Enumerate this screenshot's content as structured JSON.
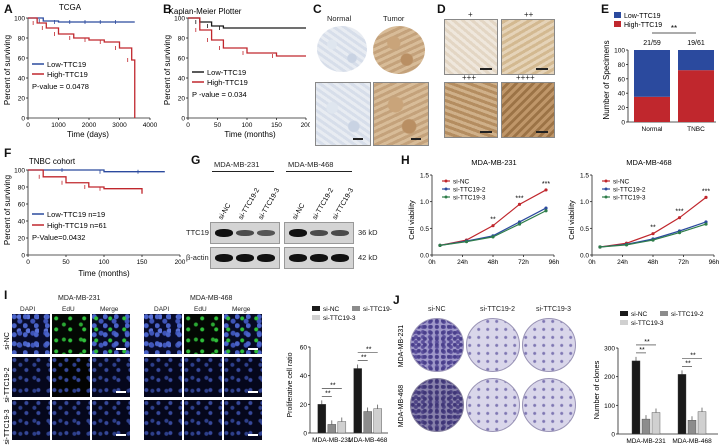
{
  "A": {
    "label": "A",
    "title": "TCGA",
    "ylabel": "Percent of surviving",
    "xlabel": "Time (days)",
    "yticks": [
      "100",
      "80",
      "60",
      "40",
      "20",
      "0"
    ],
    "xticks": [
      "0",
      "1000",
      "2000",
      "3000",
      "4000"
    ],
    "legend_low": "Low-TTC19",
    "legend_high": "High-TTC19",
    "pvalue": "P-value = 0.0478"
  },
  "B": {
    "label": "B",
    "title": "Kaplan-Meier Plotter",
    "ylabel": "Percent of surviving",
    "xlabel": "Time (months)",
    "yticks": [
      "100",
      "80",
      "60",
      "40",
      "20",
      "0"
    ],
    "xticks": [
      "0",
      "50",
      "100",
      "150",
      "200"
    ],
    "legend_low": "Low-TTC19",
    "legend_high": "High-TTC19",
    "pvalue": "P -value = 0.034"
  },
  "C": {
    "label": "C",
    "normal": "Normal",
    "tumor": "Tumor"
  },
  "D": {
    "label": "D",
    "grades": [
      "+",
      "++",
      "+++",
      "++++"
    ]
  },
  "E": {
    "label": "E",
    "ylabel": "Number of Specimens",
    "legend_low": "Low-TTC19",
    "legend_high": "High-TTC19",
    "yticks": [
      "100",
      "80",
      "60",
      "40",
      "20",
      "0"
    ],
    "categories": [
      "Normal",
      "TNBC"
    ],
    "fractions": [
      "21/59",
      "19/61"
    ],
    "sig": "**"
  },
  "F": {
    "label": "F",
    "title": "TNBC cohort",
    "ylabel": "Percent of surviving",
    "xlabel": "Time (months)",
    "yticks": [
      "100",
      "80",
      "60",
      "40",
      "20",
      "0"
    ],
    "xticks": [
      "0",
      "50",
      "100",
      "150",
      "200"
    ],
    "legend_low": "Low-TTC19 n=19",
    "legend_high": "High-TTC19 n=61",
    "pvalue": "P-Value=0.0432"
  },
  "G": {
    "label": "G",
    "cell1": "MDA-MB-231",
    "cell2": "MDA-MB-468",
    "lanes": [
      "si-NC",
      "si-TTC19-2",
      "si-TTC19-3",
      "si-NC",
      "si-TTC19-2",
      "si-TTC19-3"
    ],
    "row1": "TTC19",
    "row2": "β-actin",
    "kd1": "36 kD",
    "kd2": "42 kD"
  },
  "H": {
    "label": "H",
    "title1": "MDA-MB-231",
    "title2": "MDA-MB-468",
    "ylabel": "Cell viability",
    "yticks": [
      "1.5",
      "1.0",
      "0.5",
      "0.0"
    ],
    "xticks": [
      "0h",
      "24h",
      "48h",
      "72h",
      "96h"
    ],
    "legend": [
      "si-NC",
      "si-TTC19-2",
      "si-TTC19-3"
    ],
    "sig1": [
      "**",
      "***",
      "***"
    ],
    "sig2": [
      "**",
      "***",
      "***"
    ]
  },
  "I": {
    "label": "I",
    "cell1": "MDA-MB-231",
    "cell2": "MDA-MB-468",
    "cols": [
      "DAPI",
      "EdU",
      "Merge",
      "DAPI",
      "EdU",
      "Merge"
    ],
    "rows": [
      "si-NC",
      "si-TTC19-2",
      "si-TTC19-3"
    ],
    "ylabel": "Proliferative cell ratio",
    "yticks": [
      "60",
      "40",
      "20",
      "0"
    ],
    "legend": [
      "si-NC",
      "si-TTC19-2",
      "si-TTC19-3"
    ],
    "sig": "**"
  },
  "J": {
    "label": "J",
    "cols": [
      "si-NC",
      "si-TTC19-2",
      "si-TTC19-3"
    ],
    "rows": [
      "MDA-MB-231",
      "MDA-MB-468"
    ],
    "ylabel": "Number of clones",
    "yticks": [
      "300",
      "200",
      "100",
      "0"
    ],
    "legend": [
      "si-NC",
      "si-TTC19-2",
      "si-TTC19-3"
    ],
    "sig": "**"
  },
  "colors": {
    "low": "#2b4a9e",
    "high": "#c0272d",
    "grey": "#8c8c8c",
    "lightgrey": "#d0d0d0",
    "black": "#1a1a1a",
    "green": "#2e7d4a"
  },
  "chart_data": [
    {
      "type": "line",
      "panel": "A",
      "title": "TCGA",
      "xlabel": "Time (days)",
      "ylabel": "Percent of surviving",
      "xlim": [
        0,
        4000
      ],
      "ylim": [
        0,
        100
      ],
      "series": [
        {
          "name": "Low-TTC19",
          "x": [
            0,
            500,
            1000,
            1500,
            2000,
            2500,
            3000,
            3500
          ],
          "y": [
            100,
            97,
            96,
            96,
            96,
            96,
            96,
            96
          ]
        },
        {
          "name": "High-TTC19",
          "x": [
            0,
            300,
            600,
            1000,
            1500,
            2000,
            2500,
            3000,
            3400,
            3500
          ],
          "y": [
            100,
            95,
            90,
            84,
            80,
            78,
            76,
            70,
            58,
            0
          ]
        }
      ]
    },
    {
      "type": "line",
      "panel": "B",
      "title": "Kaplan-Meier Plotter",
      "xlabel": "Time (months)",
      "ylabel": "Percent of surviving",
      "xlim": [
        0,
        200
      ],
      "ylim": [
        0,
        100
      ],
      "series": [
        {
          "name": "Low-TTC19",
          "x": [
            0,
            20,
            40,
            60,
            200
          ],
          "y": [
            100,
            96,
            92,
            90,
            90
          ]
        },
        {
          "name": "High-TTC19",
          "x": [
            0,
            20,
            40,
            60,
            100,
            150,
            200
          ],
          "y": [
            100,
            88,
            78,
            70,
            65,
            62,
            62
          ]
        }
      ]
    },
    {
      "type": "bar",
      "panel": "E",
      "categories": [
        "Normal",
        "TNBC"
      ],
      "ylabel": "Number of Specimens",
      "ylim": [
        0,
        100
      ],
      "series": [
        {
          "name": "Low-TTC19",
          "values": [
            65,
            28
          ]
        },
        {
          "name": "High-TTC19",
          "values": [
            35,
            72
          ]
        }
      ]
    },
    {
      "type": "line",
      "panel": "F",
      "title": "TNBC cohort",
      "xlabel": "Time (months)",
      "ylabel": "Percent of surviving",
      "xlim": [
        0,
        200
      ],
      "ylim": [
        0,
        100
      ],
      "series": [
        {
          "name": "Low-TTC19 n=19",
          "x": [
            0,
            50,
            100,
            150,
            180
          ],
          "y": [
            100,
            100,
            98,
            98,
            98
          ]
        },
        {
          "name": "High-TTC19 n=61",
          "x": [
            0,
            20,
            50,
            80,
            100,
            150
          ],
          "y": [
            100,
            92,
            85,
            80,
            78,
            72
          ]
        }
      ]
    },
    {
      "type": "line",
      "panel": "H-231",
      "title": "MDA-MB-231",
      "ylabel": "Cell viability",
      "ylim": [
        0,
        1.5
      ],
      "categories": [
        "0h",
        "24h",
        "48h",
        "72h",
        "96h"
      ],
      "series": [
        {
          "name": "si-NC",
          "values": [
            0.18,
            0.28,
            0.55,
            0.95,
            1.22
          ]
        },
        {
          "name": "si-TTC19-2",
          "values": [
            0.18,
            0.26,
            0.36,
            0.62,
            0.88
          ]
        },
        {
          "name": "si-TTC19-3",
          "values": [
            0.18,
            0.25,
            0.34,
            0.58,
            0.83
          ]
        }
      ]
    },
    {
      "type": "line",
      "panel": "H-468",
      "title": "MDA-MB-468",
      "ylabel": "Cell viability",
      "ylim": [
        0,
        1.5
      ],
      "categories": [
        "0h",
        "24h",
        "48h",
        "72h",
        "96h"
      ],
      "series": [
        {
          "name": "si-NC",
          "values": [
            0.15,
            0.22,
            0.4,
            0.7,
            1.08
          ]
        },
        {
          "name": "si-TTC19-2",
          "values": [
            0.15,
            0.2,
            0.3,
            0.45,
            0.62
          ]
        },
        {
          "name": "si-TTC19-3",
          "values": [
            0.15,
            0.19,
            0.28,
            0.42,
            0.58
          ]
        }
      ]
    },
    {
      "type": "bar",
      "panel": "I",
      "ylabel": "Proliferative cell ratio",
      "ylim": [
        0,
        60
      ],
      "categories": [
        "MDA-MB-231",
        "MDA-MB-468"
      ],
      "series": [
        {
          "name": "si-NC",
          "values": [
            20,
            45
          ]
        },
        {
          "name": "si-TTC19-2",
          "values": [
            6,
            15
          ]
        },
        {
          "name": "si-TTC19-3",
          "values": [
            8,
            17
          ]
        }
      ]
    },
    {
      "type": "bar",
      "panel": "J",
      "ylabel": "Number of clones",
      "ylim": [
        0,
        300
      ],
      "categories": [
        "MDA-MB-231",
        "MDA-MB-468"
      ],
      "series": [
        {
          "name": "si-NC",
          "values": [
            255,
            208
          ]
        },
        {
          "name": "si-TTC19-2",
          "values": [
            52,
            48
          ]
        },
        {
          "name": "si-TTC19-3",
          "values": [
            75,
            78
          ]
        }
      ]
    }
  ]
}
